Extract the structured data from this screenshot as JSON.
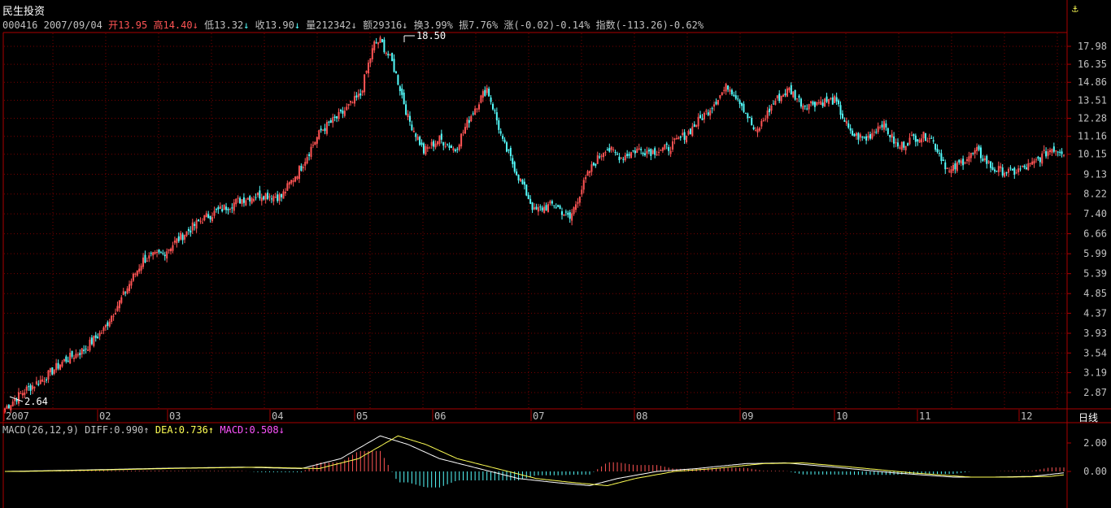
{
  "stock": {
    "name": "民生投资",
    "code": "000416",
    "date": "2007/09/04",
    "open_label": "开",
    "open": "13.95",
    "high_label": "高",
    "high": "14.40",
    "low_label": "低",
    "low": "13.32",
    "close_label": "收",
    "close": "13.90",
    "vol_label": "量",
    "vol": "212342",
    "amount_label": "额",
    "amount": "29316",
    "turnover_label": "换",
    "turnover": "3.99%",
    "amplitude_label": "振",
    "amplitude": "7.76%",
    "change_label": "涨",
    "change": "(-0.02)-0.14%",
    "index_label": "指数",
    "index": "(-113.26)-0.62%",
    "arrow_down": "↓",
    "arrow_up": "↑"
  },
  "macd": {
    "label": "MACD(26,12,9)",
    "diff_label": "DIFF:",
    "diff": "0.990",
    "dea_label": "DEA:",
    "dea": "0.736",
    "macd_label": "MACD:",
    "macd": "0.508"
  },
  "period_label": "日线",
  "price_axis": [
    "17.98",
    "16.35",
    "14.86",
    "13.51",
    "12.28",
    "11.16",
    "10.15",
    "9.13",
    "8.22",
    "7.40",
    "6.66",
    "5.99",
    "5.39",
    "4.85",
    "4.37",
    "3.93",
    "3.54",
    "3.19",
    "2.87"
  ],
  "macd_axis": [
    "2.00",
    "0.00"
  ],
  "month_labels": [
    "2007",
    "02",
    "03",
    "04",
    "05",
    "06",
    "07",
    "08",
    "09",
    "10",
    "11",
    "12"
  ],
  "annotations": {
    "max": "18.50",
    "min": "2.64"
  },
  "chart_data": {
    "type": "candlestick",
    "scale": "log",
    "series_anchor_prices": [
      [
        0,
        2.64
      ],
      [
        10,
        2.9
      ],
      [
        20,
        3.1
      ],
      [
        30,
        3.4
      ],
      [
        40,
        3.6
      ],
      [
        50,
        4.0
      ],
      [
        60,
        4.8
      ],
      [
        70,
        5.8
      ],
      [
        80,
        6.0
      ],
      [
        90,
        6.6
      ],
      [
        100,
        7.2
      ],
      [
        110,
        7.6
      ],
      [
        120,
        8.0
      ],
      [
        130,
        8.2
      ],
      [
        140,
        8.1
      ],
      [
        150,
        9.5
      ],
      [
        160,
        11.5
      ],
      [
        170,
        12.5
      ],
      [
        180,
        13.9
      ],
      [
        187,
        18.2
      ],
      [
        190,
        18.5
      ],
      [
        196,
        16.5
      ],
      [
        204,
        12.3
      ],
      [
        212,
        10.3
      ],
      [
        220,
        11.0
      ],
      [
        228,
        10.4
      ],
      [
        238,
        13.0
      ],
      [
        244,
        14.4
      ],
      [
        252,
        10.8
      ],
      [
        260,
        9.0
      ],
      [
        268,
        7.5
      ],
      [
        278,
        7.8
      ],
      [
        286,
        7.2
      ],
      [
        296,
        9.3
      ],
      [
        304,
        10.5
      ],
      [
        312,
        10.0
      ],
      [
        320,
        10.4
      ],
      [
        328,
        10.3
      ],
      [
        336,
        10.5
      ],
      [
        346,
        11.4
      ],
      [
        356,
        12.8
      ],
      [
        366,
        14.6
      ],
      [
        372,
        13.5
      ],
      [
        380,
        11.3
      ],
      [
        390,
        13.5
      ],
      [
        397,
        14.3
      ],
      [
        404,
        13.2
      ],
      [
        412,
        13.4
      ],
      [
        420,
        13.5
      ],
      [
        428,
        11.3
      ],
      [
        436,
        11.0
      ],
      [
        444,
        12.0
      ],
      [
        452,
        10.5
      ],
      [
        460,
        11.1
      ],
      [
        468,
        11.2
      ],
      [
        478,
        9.2
      ],
      [
        486,
        9.9
      ],
      [
        492,
        10.3
      ],
      [
        500,
        9.4
      ],
      [
        510,
        9.2
      ],
      [
        520,
        9.6
      ],
      [
        530,
        10.5
      ],
      [
        536,
        10.3
      ]
    ],
    "macd_anchors": [
      [
        0,
        0.0
      ],
      [
        40,
        0.1
      ],
      [
        80,
        0.22
      ],
      [
        120,
        0.3
      ],
      [
        150,
        0.2
      ],
      [
        170,
        0.9
      ],
      [
        190,
        2.5
      ],
      [
        204,
        1.9
      ],
      [
        220,
        0.9
      ],
      [
        240,
        0.2
      ],
      [
        260,
        -0.5
      ],
      [
        280,
        -0.8
      ],
      [
        296,
        -1.0
      ],
      [
        310,
        -0.5
      ],
      [
        330,
        0.0
      ],
      [
        350,
        0.2
      ],
      [
        375,
        0.55
      ],
      [
        395,
        0.6
      ],
      [
        420,
        0.3
      ],
      [
        450,
        -0.1
      ],
      [
        480,
        -0.4
      ],
      [
        500,
        -0.4
      ],
      [
        520,
        -0.35
      ],
      [
        536,
        -0.1
      ]
    ]
  }
}
